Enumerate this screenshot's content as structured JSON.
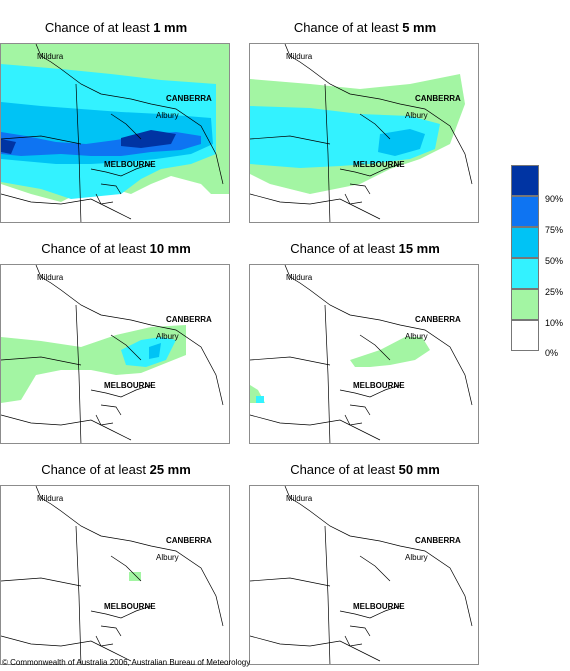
{
  "colors": {
    "p10": "#a3f5a3",
    "p25": "#33f2ff",
    "p50": "#00c3f5",
    "p75": "#0e74f2",
    "p90": "#0034a3",
    "none": "#ffffff"
  },
  "places": {
    "mildura": "Mildura",
    "canberra": "CANBERRA",
    "albury": "Albury",
    "melbourne": "MELBOURNE"
  },
  "panels": [
    {
      "title_prefix": "Chance of at least ",
      "amount": "1 mm"
    },
    {
      "title_prefix": "Chance of at least ",
      "amount": "5 mm"
    },
    {
      "title_prefix": "Chance of at least ",
      "amount": "10 mm"
    },
    {
      "title_prefix": "Chance of at least ",
      "amount": "15 mm"
    },
    {
      "title_prefix": "Chance of at least ",
      "amount": "25 mm"
    },
    {
      "title_prefix": "Chance of at least ",
      "amount": "50 mm"
    }
  ],
  "legend": {
    "labels": [
      "90%",
      "75%",
      "50%",
      "25%",
      "10%",
      "0%"
    ]
  },
  "copyright": "© Commonwealth of Australia 2006, Australian Bureau of Meteorology"
}
